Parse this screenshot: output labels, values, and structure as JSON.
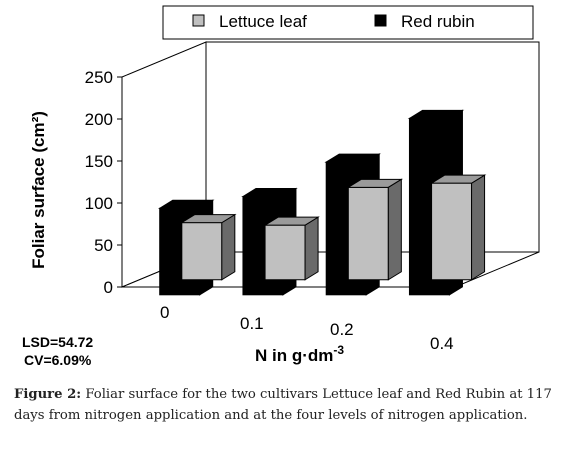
{
  "chart_data": {
    "type": "bar",
    "categories": [
      "0",
      "0.1",
      "0.2",
      "0.4"
    ],
    "series": [
      {
        "name": "Lettuce leaf",
        "values": [
          68,
          65,
          110,
          115
        ],
        "color": "#c0c0c0"
      },
      {
        "name": "Red rubin",
        "values": [
          103,
          117,
          158,
          210
        ],
        "color": "#000000"
      }
    ],
    "ylabel": "Foliar surface (cm²)",
    "xlabel": "N in g·dm⁻³",
    "ylim": [
      0,
      250
    ],
    "yticks": [
      "0",
      "50",
      "100",
      "150",
      "200",
      "250"
    ],
    "grid": false,
    "legend_position": "top-right",
    "three_d": true
  },
  "stats": {
    "lsd": "LSD=54.72",
    "cv": "CV=6.09%"
  },
  "caption": {
    "label": "Figure 2:",
    "text": " Foliar surface for the two cultivars Lettuce leaf and Red Rubin at 117 days from nitrogen application and at the four levels of nitrogen application."
  }
}
